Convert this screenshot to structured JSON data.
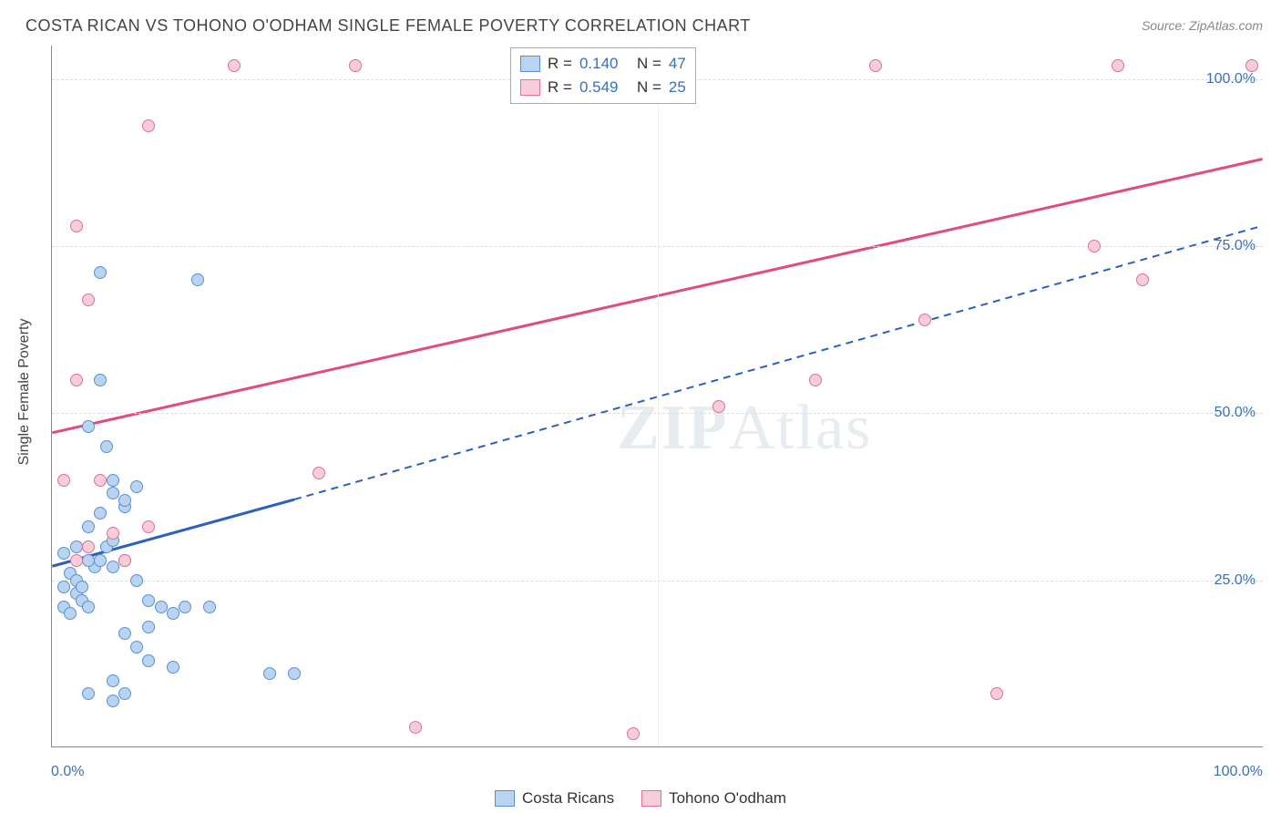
{
  "title": "COSTA RICAN VS TOHONO O'ODHAM SINGLE FEMALE POVERTY CORRELATION CHART",
  "source_prefix": "Source: ",
  "source_name": "ZipAtlas.com",
  "ylabel": "Single Female Poverty",
  "watermark": "ZIPAtlas",
  "chart": {
    "type": "scatter",
    "xlim": [
      0,
      100
    ],
    "ylim": [
      0,
      105
    ],
    "x_ticks": [
      0,
      50,
      100
    ],
    "x_tick_labels": [
      "0.0%",
      "",
      "100.0%"
    ],
    "y_ticks": [
      25,
      50,
      75,
      100
    ],
    "y_tick_labels": [
      "25.0%",
      "50.0%",
      "75.0%",
      "100.0%"
    ],
    "background_color": "#ffffff",
    "grid_color": "#dddddd",
    "marker_radius": 7,
    "marker_stroke_width": 1.5,
    "series": [
      {
        "name": "Costa Ricans",
        "fill": "#b9d4f1",
        "stroke": "#5a8fd6",
        "line_color": "#2b5fc1",
        "r_value": "0.140",
        "n_value": "47",
        "trend": {
          "x1": 0,
          "y1": 27,
          "x2": 20,
          "y2": 37,
          "solid": true
        },
        "trend_ext": {
          "x1": 20,
          "y1": 37,
          "x2": 100,
          "y2": 78,
          "solid": false
        },
        "points": [
          [
            1,
            24
          ],
          [
            1.5,
            26
          ],
          [
            2,
            25
          ],
          [
            2,
            23
          ],
          [
            2.5,
            22
          ],
          [
            3,
            21
          ],
          [
            1,
            21
          ],
          [
            1.5,
            20
          ],
          [
            3.5,
            27
          ],
          [
            4,
            28
          ],
          [
            4.5,
            30
          ],
          [
            5,
            31
          ],
          [
            3,
            33
          ],
          [
            4,
            35
          ],
          [
            5,
            38
          ],
          [
            6,
            36
          ],
          [
            5,
            40
          ],
          [
            7,
            39
          ],
          [
            6,
            37
          ],
          [
            4.5,
            45
          ],
          [
            1,
            29
          ],
          [
            2,
            30
          ],
          [
            3,
            28
          ],
          [
            2.5,
            24
          ],
          [
            5,
            27
          ],
          [
            6,
            28
          ],
          [
            7,
            25
          ],
          [
            8,
            22
          ],
          [
            9,
            21
          ],
          [
            10,
            20
          ],
          [
            8,
            18
          ],
          [
            11,
            21
          ],
          [
            13,
            21
          ],
          [
            7,
            15
          ],
          [
            8,
            13
          ],
          [
            10,
            12
          ],
          [
            5,
            10
          ],
          [
            6,
            8
          ],
          [
            3,
            8
          ],
          [
            5,
            7
          ],
          [
            18,
            11
          ],
          [
            20,
            11
          ],
          [
            6,
            17
          ],
          [
            4,
            71
          ],
          [
            12,
            70
          ],
          [
            4,
            55
          ],
          [
            3,
            48
          ]
        ]
      },
      {
        "name": "Tohono O'odham",
        "fill": "#f6cdd8",
        "stroke": "#e36f92",
        "line_color": "#e14d78",
        "r_value": "0.549",
        "n_value": "25",
        "trend": {
          "x1": 0,
          "y1": 47,
          "x2": 100,
          "y2": 88,
          "solid": true
        },
        "points": [
          [
            2,
            28
          ],
          [
            3,
            30
          ],
          [
            5,
            32
          ],
          [
            4,
            40
          ],
          [
            1,
            40
          ],
          [
            8,
            33
          ],
          [
            2,
            55
          ],
          [
            3,
            67
          ],
          [
            2,
            78
          ],
          [
            8,
            93
          ],
          [
            15,
            102
          ],
          [
            25,
            102
          ],
          [
            22,
            41
          ],
          [
            55,
            51
          ],
          [
            63,
            55
          ],
          [
            72,
            64
          ],
          [
            68,
            102
          ],
          [
            86,
            75
          ],
          [
            88,
            102
          ],
          [
            90,
            70
          ],
          [
            99,
            102
          ],
          [
            78,
            8
          ],
          [
            48,
            2
          ],
          [
            30,
            3
          ],
          [
            6,
            28
          ]
        ]
      }
    ]
  },
  "legend_top": {
    "r_label": "R =",
    "n_label": "N ="
  },
  "colors": {
    "title": "#444444",
    "source": "#888888",
    "tick_label": "#3b6fb6",
    "stat_label": "#333333",
    "stat_value": "#3b6fb6"
  }
}
